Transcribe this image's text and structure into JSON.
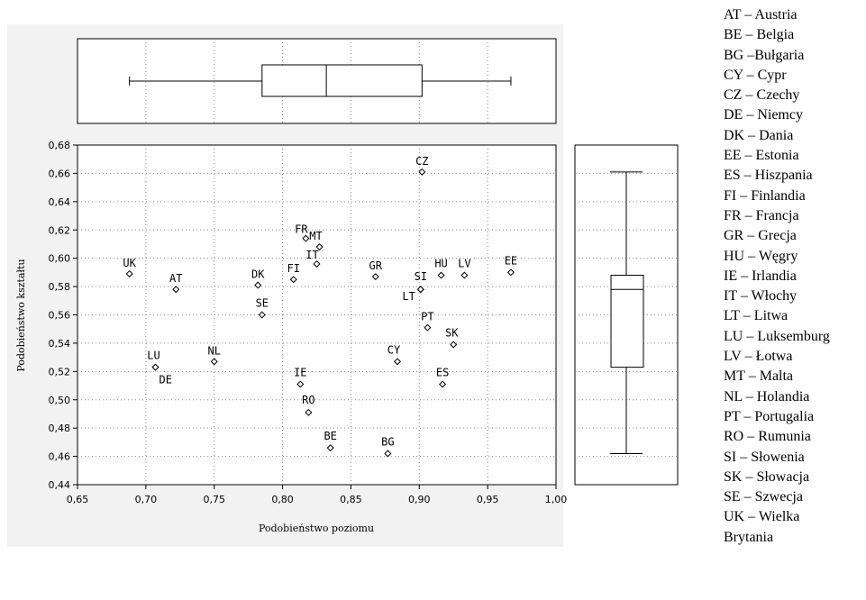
{
  "chart_data": {
    "type": "scatter",
    "xlabel": "Podobieństwo poziomu",
    "ylabel": "Podobieństwo kształtu",
    "xlim": [
      0.65,
      1.0
    ],
    "ylim": [
      0.44,
      0.68
    ],
    "xticks": [
      "0,65",
      "0,70",
      "0,75",
      "0,80",
      "0,85",
      "0,90",
      "0,95",
      "1,00"
    ],
    "yticks": [
      "0,44",
      "0,46",
      "0,48",
      "0,50",
      "0,52",
      "0,54",
      "0,56",
      "0,58",
      "0,60",
      "0,62",
      "0,64",
      "0,66",
      "0,68"
    ],
    "grid": true,
    "points": [
      {
        "label": "UK",
        "x": 0.688,
        "y": 0.589
      },
      {
        "label": "AT",
        "x": 0.722,
        "y": 0.578
      },
      {
        "label": "LU",
        "x": 0.707,
        "y": 0.523
      },
      {
        "label": "DE",
        "x": 0.707,
        "y": 0.523
      },
      {
        "label": "NL",
        "x": 0.75,
        "y": 0.527
      },
      {
        "label": "DK",
        "x": 0.782,
        "y": 0.581
      },
      {
        "label": "SE",
        "x": 0.785,
        "y": 0.56
      },
      {
        "label": "FI",
        "x": 0.808,
        "y": 0.585
      },
      {
        "label": "FR",
        "x": 0.817,
        "y": 0.614
      },
      {
        "label": "MT",
        "x": 0.827,
        "y": 0.608
      },
      {
        "label": "IT",
        "x": 0.825,
        "y": 0.596
      },
      {
        "label": "IE",
        "x": 0.813,
        "y": 0.511
      },
      {
        "label": "RO",
        "x": 0.819,
        "y": 0.491
      },
      {
        "label": "BE",
        "x": 0.835,
        "y": 0.466
      },
      {
        "label": "GR",
        "x": 0.868,
        "y": 0.587
      },
      {
        "label": "BG",
        "x": 0.877,
        "y": 0.462
      },
      {
        "label": "CY",
        "x": 0.884,
        "y": 0.527
      },
      {
        "label": "CZ",
        "x": 0.902,
        "y": 0.661
      },
      {
        "label": "SI",
        "x": 0.901,
        "y": 0.578
      },
      {
        "label": "LT",
        "x": 0.901,
        "y": 0.578
      },
      {
        "label": "PT",
        "x": 0.906,
        "y": 0.551
      },
      {
        "label": "HU",
        "x": 0.916,
        "y": 0.588
      },
      {
        "label": "ES",
        "x": 0.917,
        "y": 0.511
      },
      {
        "label": "SK",
        "x": 0.925,
        "y": 0.539
      },
      {
        "label": "LV",
        "x": 0.933,
        "y": 0.588
      },
      {
        "label": "EE",
        "x": 0.967,
        "y": 0.59
      }
    ],
    "boxplot_x": {
      "min": 0.688,
      "q1": 0.785,
      "median": 0.832,
      "q3": 0.902,
      "max": 0.967
    },
    "boxplot_y": {
      "min": 0.462,
      "q1": 0.523,
      "median": 0.578,
      "q3": 0.588,
      "max": 0.661
    }
  },
  "legend": [
    "AT – Austria",
    "BE – Belgia",
    "BG –Bułgaria",
    "CY – Cypr",
    "CZ – Czechy",
    "DE – Niemcy",
    "DK – Dania",
    "EE – Estonia",
    "ES – Hiszpania",
    "FI – Finlandia",
    "FR – Francja",
    "GR – Grecja",
    "HU – Węgry",
    "IE – Irlandia",
    "IT – Włochy",
    "LT – Litwa",
    "LU – Luksemburg",
    "LV – Łotwa",
    "MT – Malta",
    "NL – Holandia",
    "PT – Portugalia",
    "RO – Rumunia",
    "SI – Słowenia",
    "SK – Słowacja",
    "SE – Szwecja",
    "UK – Wielka",
    "Brytania"
  ]
}
